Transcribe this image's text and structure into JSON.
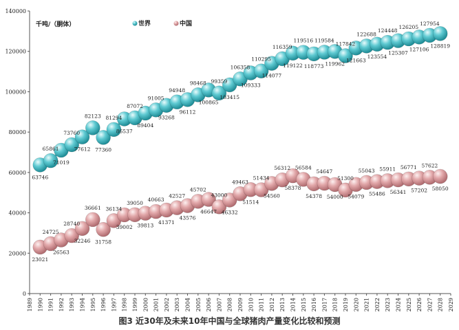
{
  "caption": "图3 近30年及未来10年中国与全球猪肉产量变化比较和预测",
  "chart_data": {
    "type": "line",
    "ylabel": "千吨/（胴体）",
    "ylim": [
      0,
      140000
    ],
    "yticks": [
      0,
      20000,
      40000,
      60000,
      80000,
      100000,
      120000,
      140000
    ],
    "categories": [
      "1989",
      "1990",
      "1991",
      "1992",
      "1993",
      "1994",
      "1995",
      "1996",
      "1997",
      "1998",
      "1999",
      "2000",
      "2001",
      "2002",
      "2003",
      "2004",
      "2005",
      "2006",
      "2007",
      "2008",
      "2009",
      "2010",
      "2011",
      "2012",
      "2013",
      "2014",
      "2015",
      "2016",
      "2017",
      "2018",
      "2019",
      "2020",
      "2021",
      "2022",
      "2023",
      "2024",
      "2025",
      "2026",
      "2027",
      "2028",
      "2029"
    ],
    "legend_position": "top",
    "grid": false,
    "series": [
      {
        "name": "世界",
        "color": "#3cb8c2",
        "values": [
          null,
          63746,
          65861,
          71019,
          73760,
          77612,
          82123,
          77360,
          81294,
          86537,
          87072,
          89404,
          91005,
          93268,
          94948,
          96112,
          98468,
          100865,
          99359,
          103415,
          106358,
          109333,
          110295,
          114077,
          116359,
          119122,
          119516,
          118773,
          119584,
          119962,
          117842,
          121663,
          122688,
          123554,
          124448,
          125307,
          126205,
          127106,
          127954,
          128819,
          null
        ]
      },
      {
        "name": "中国",
        "color": "#d99a9c",
        "values": [
          null,
          23021,
          24725,
          26563,
          28740,
          32246,
          36661,
          31758,
          36134,
          39002,
          39050,
          39813,
          40663,
          41371,
          42527,
          43576,
          45702,
          46647,
          43000,
          46332,
          49463,
          51514,
          51434,
          54560,
          56312,
          58378,
          56584,
          54378,
          54647,
          54000,
          51300,
          54079,
          55043,
          55486,
          55911,
          56341,
          56771,
          57202,
          57622,
          58050,
          null
        ]
      }
    ]
  }
}
